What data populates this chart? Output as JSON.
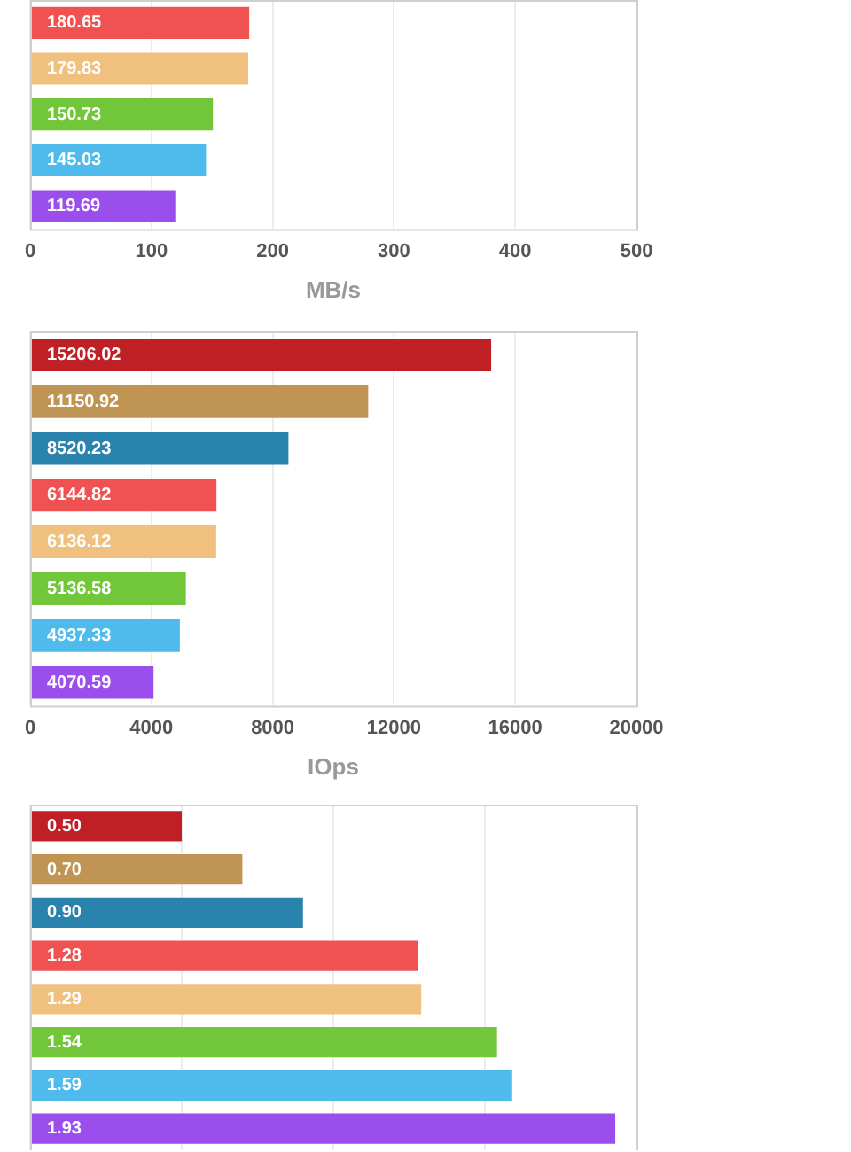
{
  "chart_data": [
    {
      "type": "bar",
      "orientation": "horizontal",
      "categories": [
        null,
        null,
        null,
        null,
        null
      ],
      "values": [
        180.65,
        179.83,
        150.73,
        145.03,
        119.69
      ],
      "colors": [
        "#f05252",
        "#efc07e",
        "#72c63a",
        "#4fbbec",
        "#9a4fec"
      ],
      "xlim": [
        0,
        500
      ],
      "xticks": [
        0,
        100,
        200,
        300,
        400,
        500
      ],
      "xlabel": "MB/s",
      "grid": "x",
      "data_labels": true
    },
    {
      "type": "bar",
      "orientation": "horizontal",
      "categories": [
        null,
        null,
        null,
        null,
        null,
        null,
        null,
        null
      ],
      "values": [
        15206.02,
        11150.92,
        8520.23,
        6144.82,
        6136.12,
        5136.58,
        4937.33,
        4070.59
      ],
      "colors": [
        "#bf2026",
        "#c09453",
        "#2a83ad",
        "#f05252",
        "#efc07e",
        "#72c63a",
        "#4fbbec",
        "#9a4fec"
      ],
      "xlim": [
        0,
        20000
      ],
      "xticks": [
        0,
        4000,
        8000,
        12000,
        16000,
        20000
      ],
      "xlabel": "IOps",
      "grid": "x",
      "data_labels": true
    },
    {
      "type": "bar",
      "orientation": "horizontal",
      "categories": [
        null,
        null,
        null,
        null,
        null,
        null,
        null,
        null
      ],
      "values": [
        0.5,
        0.7,
        0.9,
        1.28,
        1.29,
        1.54,
        1.59,
        1.93
      ],
      "value_labels": [
        "0.50",
        "0.70",
        "0.90",
        "1.28",
        "1.29",
        "1.54",
        "1.59",
        "1.93"
      ],
      "colors": [
        "#bf2026",
        "#c09453",
        "#2a83ad",
        "#f05252",
        "#efc07e",
        "#72c63a",
        "#4fbbec",
        "#9a4fec"
      ],
      "grid": "x",
      "tick_labels": false
    }
  ]
}
